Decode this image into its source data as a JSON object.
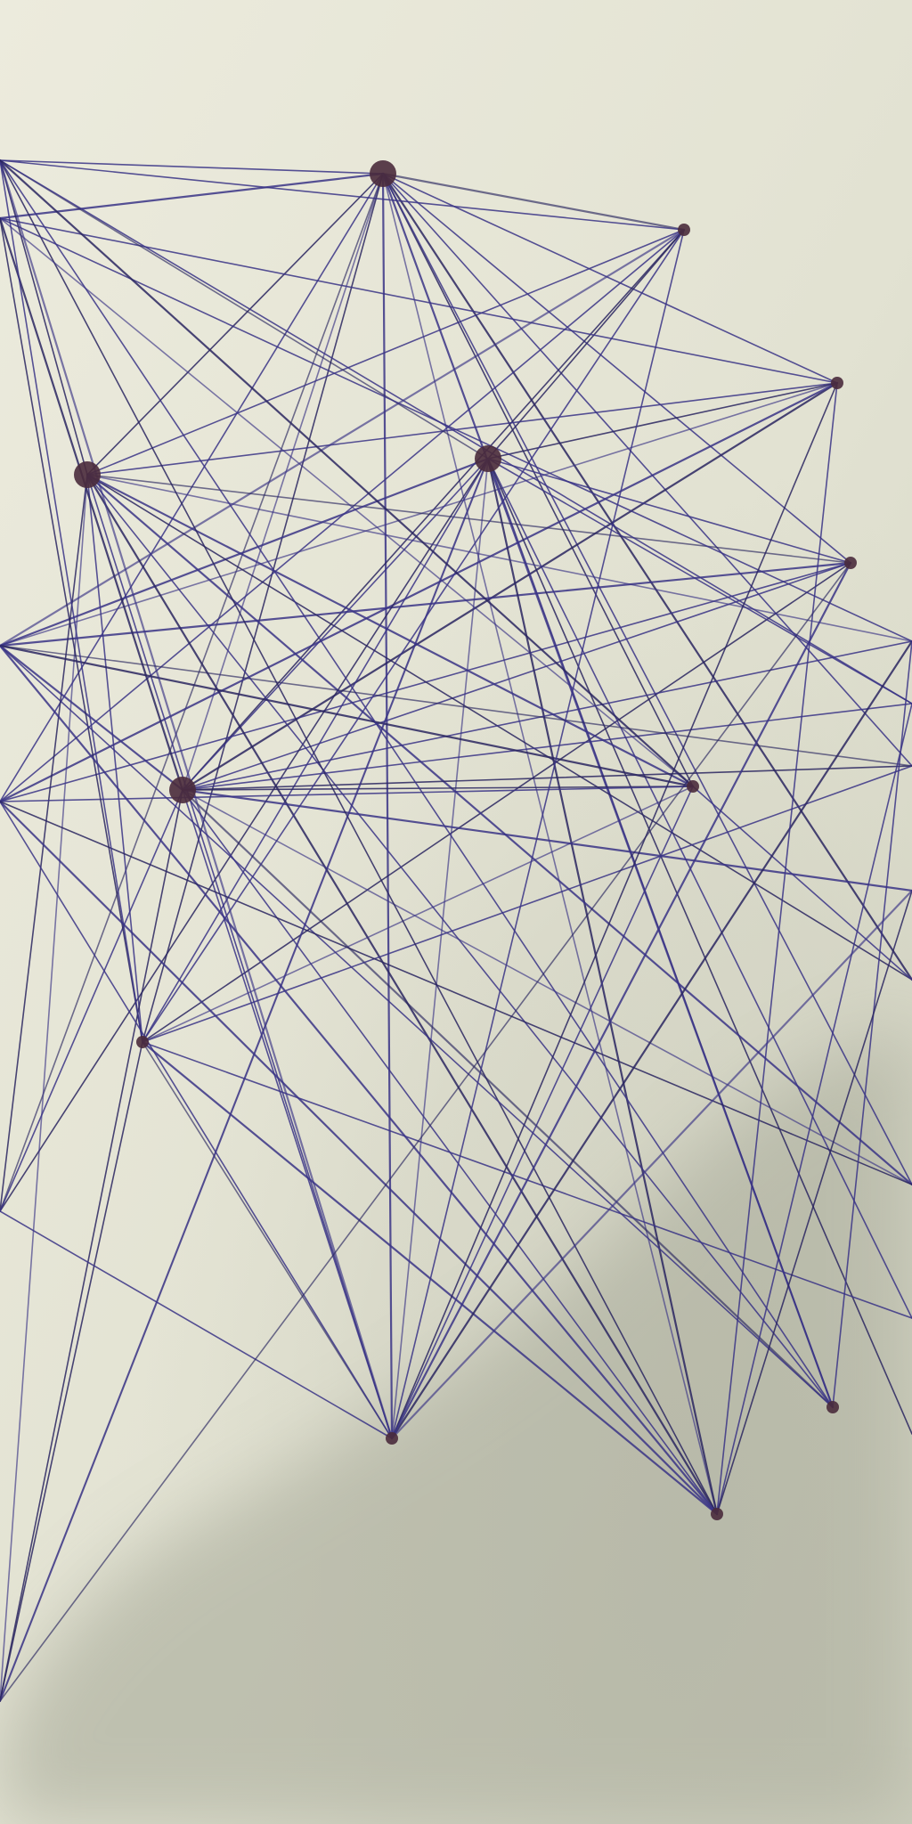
{
  "photo": {
    "subject": "string-art-pen-drawing",
    "colors": {
      "paper_light": "#ecebdd",
      "paper_mid": "#dcdccb",
      "shadow": "#b7b8a8",
      "ink": "#3a3486",
      "ink_dark": "#2a2660",
      "node": "#4a2b3c"
    },
    "lines_visible": true,
    "shadow_visible": true
  }
}
